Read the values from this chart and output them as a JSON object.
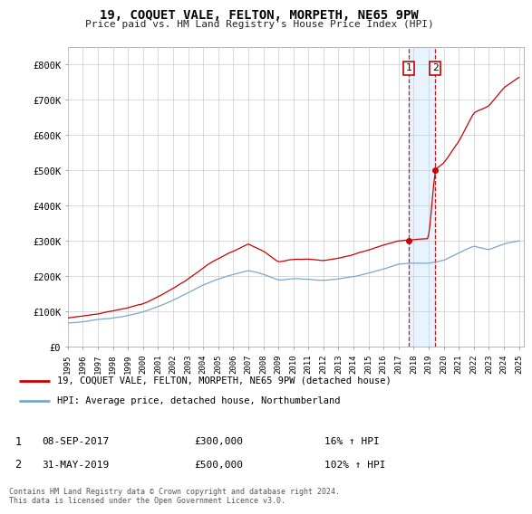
{
  "title": "19, COQUET VALE, FELTON, MORPETH, NE65 9PW",
  "subtitle": "Price paid vs. HM Land Registry's House Price Index (HPI)",
  "legend_line1": "19, COQUET VALE, FELTON, MORPETH, NE65 9PW (detached house)",
  "legend_line2": "HPI: Average price, detached house, Northumberland",
  "transaction1": {
    "label": "1",
    "date": "08-SEP-2017",
    "price": "£300,000",
    "hpi": "16% ↑ HPI"
  },
  "transaction2": {
    "label": "2",
    "date": "31-MAY-2019",
    "price": "£500,000",
    "hpi": "102% ↑ HPI"
  },
  "footnote": "Contains HM Land Registry data © Crown copyright and database right 2024.\nThis data is licensed under the Open Government Licence v3.0.",
  "red_color": "#cc0000",
  "blue_color": "#7ba7c9",
  "shade_color": "#ddeeff",
  "grid_color": "#cccccc",
  "background": "#ffffff",
  "ylim": [
    0,
    850000
  ],
  "yticks": [
    0,
    100000,
    200000,
    300000,
    400000,
    500000,
    600000,
    700000,
    800000
  ],
  "ytick_labels": [
    "£0",
    "£100K",
    "£200K",
    "£300K",
    "£400K",
    "£500K",
    "£600K",
    "£700K",
    "£800K"
  ],
  "year_start": 1995,
  "year_end": 2025,
  "transaction1_year": 2017.69,
  "transaction2_year": 2019.42,
  "t1_price": 300000,
  "t2_price": 500000
}
